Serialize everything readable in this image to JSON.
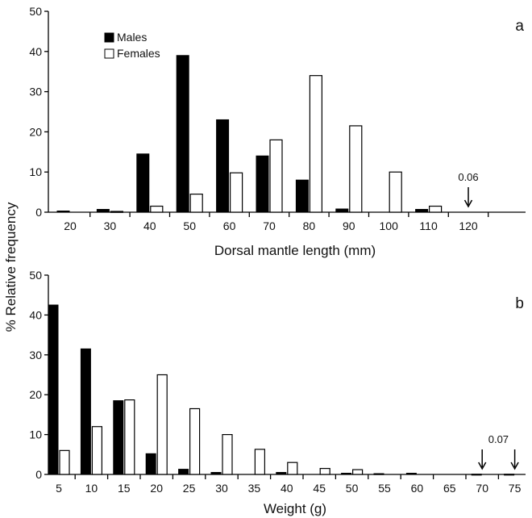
{
  "figure": {
    "ylabel": "% Relative frequency",
    "legend": {
      "males": "Males",
      "females": "Females"
    },
    "colors": {
      "males": "#000000",
      "females": "#ffffff",
      "stroke": "#000000"
    }
  },
  "chart_data": [
    {
      "type": "bar",
      "panel_label": "a",
      "xlabel": "Dorsal mantle length (mm)",
      "ylim": [
        0,
        50
      ],
      "yticks": [
        0,
        10,
        20,
        30,
        40,
        50
      ],
      "grid": false,
      "legend_position": "top-left",
      "categories": [
        "20",
        "30",
        "40",
        "50",
        "60",
        "70",
        "80",
        "90",
        "100",
        "110",
        "120"
      ],
      "series": [
        {
          "name": "Males",
          "values": [
            0.3,
            0.7,
            14.5,
            39,
            23,
            14,
            8,
            0.8,
            0,
            0.7,
            0
          ]
        },
        {
          "name": "Females",
          "values": [
            0,
            0.2,
            1.5,
            4.5,
            9.8,
            18,
            34,
            21.5,
            10,
            1.5,
            0.06
          ]
        }
      ],
      "annotation": {
        "text": "0.06",
        "category": "120"
      }
    },
    {
      "type": "bar",
      "panel_label": "b",
      "xlabel": "Weight (g)",
      "ylim": [
        0,
        50
      ],
      "yticks": [
        0,
        10,
        20,
        30,
        40,
        50
      ],
      "grid": false,
      "categories": [
        "5",
        "10",
        "15",
        "20",
        "25",
        "30",
        "35",
        "40",
        "45",
        "50",
        "55",
        "60",
        "65",
        "70",
        "75"
      ],
      "series": [
        {
          "name": "Males",
          "values": [
            42.5,
            31.5,
            18.5,
            5.2,
            1.3,
            0.5,
            0,
            0.5,
            0,
            0.3,
            0.2,
            0.3,
            0,
            0.07,
            0.07
          ]
        },
        {
          "name": "Females",
          "values": [
            6,
            12,
            18.7,
            25,
            16.5,
            10,
            6.3,
            3,
            1.5,
            1.2,
            0,
            0,
            0,
            0,
            0
          ]
        }
      ],
      "annotation": {
        "text": "0.07",
        "categories": [
          "70",
          "75"
        ]
      }
    }
  ]
}
